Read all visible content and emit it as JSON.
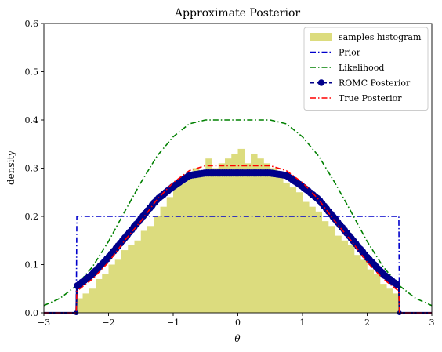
{
  "chart_data": {
    "type": "line",
    "title": "Approximate Posterior",
    "xlabel": "θ",
    "ylabel": "density",
    "xlim": [
      -3,
      3
    ],
    "ylim": [
      0,
      0.6
    ],
    "xticks": [
      -3,
      -2,
      -1,
      0,
      1,
      2,
      3
    ],
    "xtick_labels": [
      "−3",
      "−2",
      "−1",
      "0",
      "1",
      "2",
      "3"
    ],
    "yticks": [
      0,
      0.1,
      0.2,
      0.3,
      0.4,
      0.5,
      0.6
    ],
    "ytick_labels": [
      "0.0",
      "0.1",
      "0.2",
      "0.3",
      "0.4",
      "0.5",
      "0.6"
    ],
    "grid": false,
    "legend_position": "top-right",
    "legend": [
      "samples histogram",
      "Prior",
      "Likelihood",
      "ROMC Posterior",
      "True Posterior"
    ],
    "histogram": {
      "name": "samples histogram",
      "color": "#dcdc7e",
      "bin_edges": [
        -2.5,
        -2.4,
        -2.3,
        -2.2,
        -2.1,
        -2.0,
        -1.9,
        -1.8,
        -1.7,
        -1.6,
        -1.5,
        -1.4,
        -1.3,
        -1.2,
        -1.1,
        -1.0,
        -0.9,
        -0.8,
        -0.7,
        -0.6,
        -0.5,
        -0.4,
        -0.3,
        -0.2,
        -0.1,
        0.0,
        0.1,
        0.2,
        0.3,
        0.4,
        0.5,
        0.6,
        0.7,
        0.8,
        0.9,
        1.0,
        1.1,
        1.2,
        1.3,
        1.4,
        1.5,
        1.6,
        1.7,
        1.8,
        1.9,
        2.0,
        2.1,
        2.2,
        2.3,
        2.4,
        2.5
      ],
      "values": [
        0.03,
        0.04,
        0.05,
        0.07,
        0.08,
        0.1,
        0.11,
        0.13,
        0.14,
        0.15,
        0.17,
        0.18,
        0.2,
        0.22,
        0.24,
        0.26,
        0.27,
        0.28,
        0.3,
        0.29,
        0.32,
        0.3,
        0.31,
        0.32,
        0.33,
        0.34,
        0.31,
        0.33,
        0.32,
        0.31,
        0.3,
        0.29,
        0.27,
        0.26,
        0.25,
        0.23,
        0.22,
        0.21,
        0.19,
        0.18,
        0.16,
        0.15,
        0.14,
        0.12,
        0.11,
        0.09,
        0.08,
        0.06,
        0.05,
        0.04
      ]
    },
    "series": [
      {
        "name": "Prior",
        "color": "#0000cc",
        "style": "dashdot",
        "x": [
          -3.0,
          -2.5,
          -2.49,
          2.49,
          2.5,
          3.0
        ],
        "y": [
          0.0,
          0.0,
          0.2,
          0.2,
          0.0,
          0.0
        ]
      },
      {
        "name": "Likelihood",
        "color": "#008000",
        "style": "dashdot",
        "x": [
          -3.0,
          -2.75,
          -2.5,
          -2.25,
          -2.0,
          -1.75,
          -1.5,
          -1.25,
          -1.0,
          -0.75,
          -0.5,
          0.0,
          0.5,
          0.75,
          1.0,
          1.25,
          1.5,
          1.75,
          2.0,
          2.25,
          2.5,
          2.75,
          3.0
        ],
        "y": [
          0.015,
          0.03,
          0.056,
          0.095,
          0.148,
          0.21,
          0.27,
          0.325,
          0.365,
          0.392,
          0.4,
          0.4,
          0.4,
          0.392,
          0.365,
          0.325,
          0.27,
          0.21,
          0.148,
          0.095,
          0.056,
          0.03,
          0.015
        ]
      },
      {
        "name": "ROMC Posterior",
        "color": "#00008b",
        "style": "solid-markers",
        "x": [
          -3.0,
          -2.5,
          -2.49,
          -2.25,
          -2.0,
          -1.75,
          -1.5,
          -1.25,
          -1.0,
          -0.75,
          -0.5,
          0.0,
          0.5,
          0.75,
          1.0,
          1.25,
          1.5,
          1.75,
          2.0,
          2.25,
          2.49,
          2.5,
          3.0
        ],
        "y": [
          0.0,
          0.0,
          0.055,
          0.08,
          0.115,
          0.155,
          0.195,
          0.235,
          0.262,
          0.285,
          0.29,
          0.29,
          0.29,
          0.285,
          0.262,
          0.235,
          0.195,
          0.155,
          0.115,
          0.08,
          0.055,
          0.0,
          0.0
        ]
      },
      {
        "name": "True Posterior",
        "color": "#ff0000",
        "style": "dashdot",
        "x": [
          -3.0,
          -2.5,
          -2.49,
          -2.25,
          -2.0,
          -1.75,
          -1.5,
          -1.25,
          -1.0,
          -0.75,
          -0.5,
          0.0,
          0.5,
          0.75,
          1.0,
          1.25,
          1.5,
          1.75,
          2.0,
          2.25,
          2.49,
          2.5,
          3.0
        ],
        "y": [
          0.0,
          0.0,
          0.045,
          0.07,
          0.105,
          0.15,
          0.19,
          0.235,
          0.27,
          0.295,
          0.305,
          0.305,
          0.305,
          0.295,
          0.27,
          0.235,
          0.19,
          0.15,
          0.105,
          0.07,
          0.045,
          0.0,
          0.0
        ]
      }
    ]
  }
}
